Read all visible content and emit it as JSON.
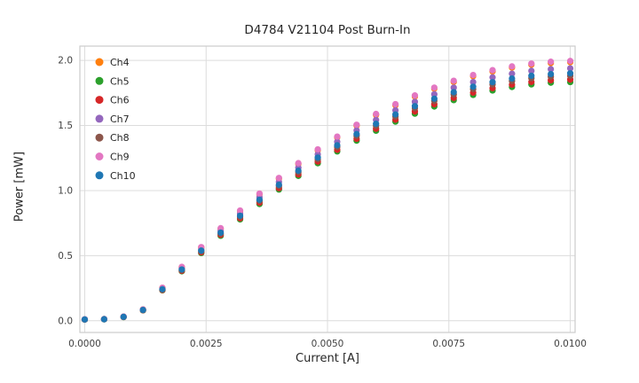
{
  "figure": {
    "title": "D4784 V21104 Post Burn-In"
  },
  "colors": {
    "background": "#ffffff",
    "grid": "#dcdcdc",
    "spine": "#cccccc",
    "tick_text": "#404040",
    "title_text": "#262626"
  },
  "chart_data": {
    "type": "scatter",
    "title": "D4784 V21104 Post Burn-In",
    "xlabel": "Current [A]",
    "ylabel": "Power [mW]",
    "xlim": [
      -0.0001,
      0.0101
    ],
    "ylim": [
      -0.09,
      2.11
    ],
    "grid": true,
    "legend_position": "upper-left",
    "x_ticks": [
      {
        "value": 0.0,
        "label": "0.0000"
      },
      {
        "value": 0.0025,
        "label": "0.0025"
      },
      {
        "value": 0.005,
        "label": "0.0050"
      },
      {
        "value": 0.0075,
        "label": "0.0075"
      },
      {
        "value": 0.01,
        "label": "0.0100"
      }
    ],
    "y_ticks": [
      {
        "value": 0.0,
        "label": "0.0"
      },
      {
        "value": 0.5,
        "label": "0.5"
      },
      {
        "value": 1.0,
        "label": "1.0"
      },
      {
        "value": 1.5,
        "label": "1.5"
      },
      {
        "value": 2.0,
        "label": "2.0"
      }
    ],
    "x": [
      0.0,
      0.0004,
      0.0008,
      0.0012,
      0.0016,
      0.002,
      0.0024,
      0.0028,
      0.0032,
      0.0036,
      0.004,
      0.0044,
      0.0048,
      0.0052,
      0.0056,
      0.006,
      0.0064,
      0.0068,
      0.0072,
      0.0076,
      0.008,
      0.0084,
      0.0088,
      0.0092,
      0.0096,
      0.01
    ],
    "series": [
      {
        "name": "Ch4",
        "color": "#ff7f0e",
        "values": [
          0.01,
          0.013,
          0.032,
          0.087,
          0.253,
          0.412,
          0.563,
          0.707,
          0.843,
          0.972,
          1.092,
          1.205,
          1.31,
          1.409,
          1.499,
          1.581,
          1.656,
          1.723,
          1.783,
          1.835,
          1.879,
          1.915,
          1.945,
          1.967,
          1.98,
          1.987
        ]
      },
      {
        "name": "Ch5",
        "color": "#2ca02c",
        "values": [
          0.009,
          0.011,
          0.028,
          0.08,
          0.234,
          0.38,
          0.52,
          0.653,
          0.779,
          0.897,
          1.008,
          1.113,
          1.21,
          1.301,
          1.384,
          1.46,
          1.53,
          1.591,
          1.646,
          1.695,
          1.735,
          1.769,
          1.796,
          1.816,
          1.829,
          1.834
        ]
      },
      {
        "name": "Ch6",
        "color": "#d62728",
        "values": [
          0.01,
          0.012,
          0.029,
          0.081,
          0.236,
          0.384,
          0.526,
          0.66,
          0.787,
          0.907,
          1.019,
          1.124,
          1.223,
          1.314,
          1.398,
          1.475,
          1.545,
          1.608,
          1.663,
          1.712,
          1.753,
          1.787,
          1.814,
          1.835,
          1.848,
          1.853
        ]
      },
      {
        "name": "Ch7",
        "color": "#9467bd",
        "values": [
          0.01,
          0.012,
          0.031,
          0.085,
          0.247,
          0.402,
          0.55,
          0.691,
          0.823,
          0.949,
          1.066,
          1.176,
          1.279,
          1.375,
          1.463,
          1.543,
          1.617,
          1.682,
          1.74,
          1.791,
          1.834,
          1.87,
          1.898,
          1.92,
          1.933,
          1.939
        ]
      },
      {
        "name": "Ch8",
        "color": "#8c564b",
        "values": [
          0.01,
          0.012,
          0.03,
          0.082,
          0.24,
          0.39,
          0.534,
          0.67,
          0.799,
          0.921,
          1.035,
          1.141,
          1.241,
          1.335,
          1.42,
          1.498,
          1.569,
          1.633,
          1.689,
          1.738,
          1.78,
          1.815,
          1.842,
          1.863,
          1.876,
          1.882
        ]
      },
      {
        "name": "Ch9",
        "color": "#e377c2",
        "values": [
          0.011,
          0.013,
          0.032,
          0.087,
          0.254,
          0.414,
          0.566,
          0.711,
          0.847,
          0.977,
          1.097,
          1.211,
          1.317,
          1.415,
          1.506,
          1.589,
          1.664,
          1.731,
          1.791,
          1.844,
          1.888,
          1.925,
          1.954,
          1.976,
          1.99,
          1.996
        ]
      },
      {
        "name": "Ch10",
        "color": "#1f77b4",
        "values": [
          0.01,
          0.012,
          0.03,
          0.083,
          0.242,
          0.394,
          0.539,
          0.677,
          0.807,
          0.93,
          1.045,
          1.153,
          1.254,
          1.348,
          1.434,
          1.513,
          1.585,
          1.649,
          1.706,
          1.756,
          1.798,
          1.833,
          1.861,
          1.882,
          1.895,
          1.901
        ]
      }
    ]
  }
}
